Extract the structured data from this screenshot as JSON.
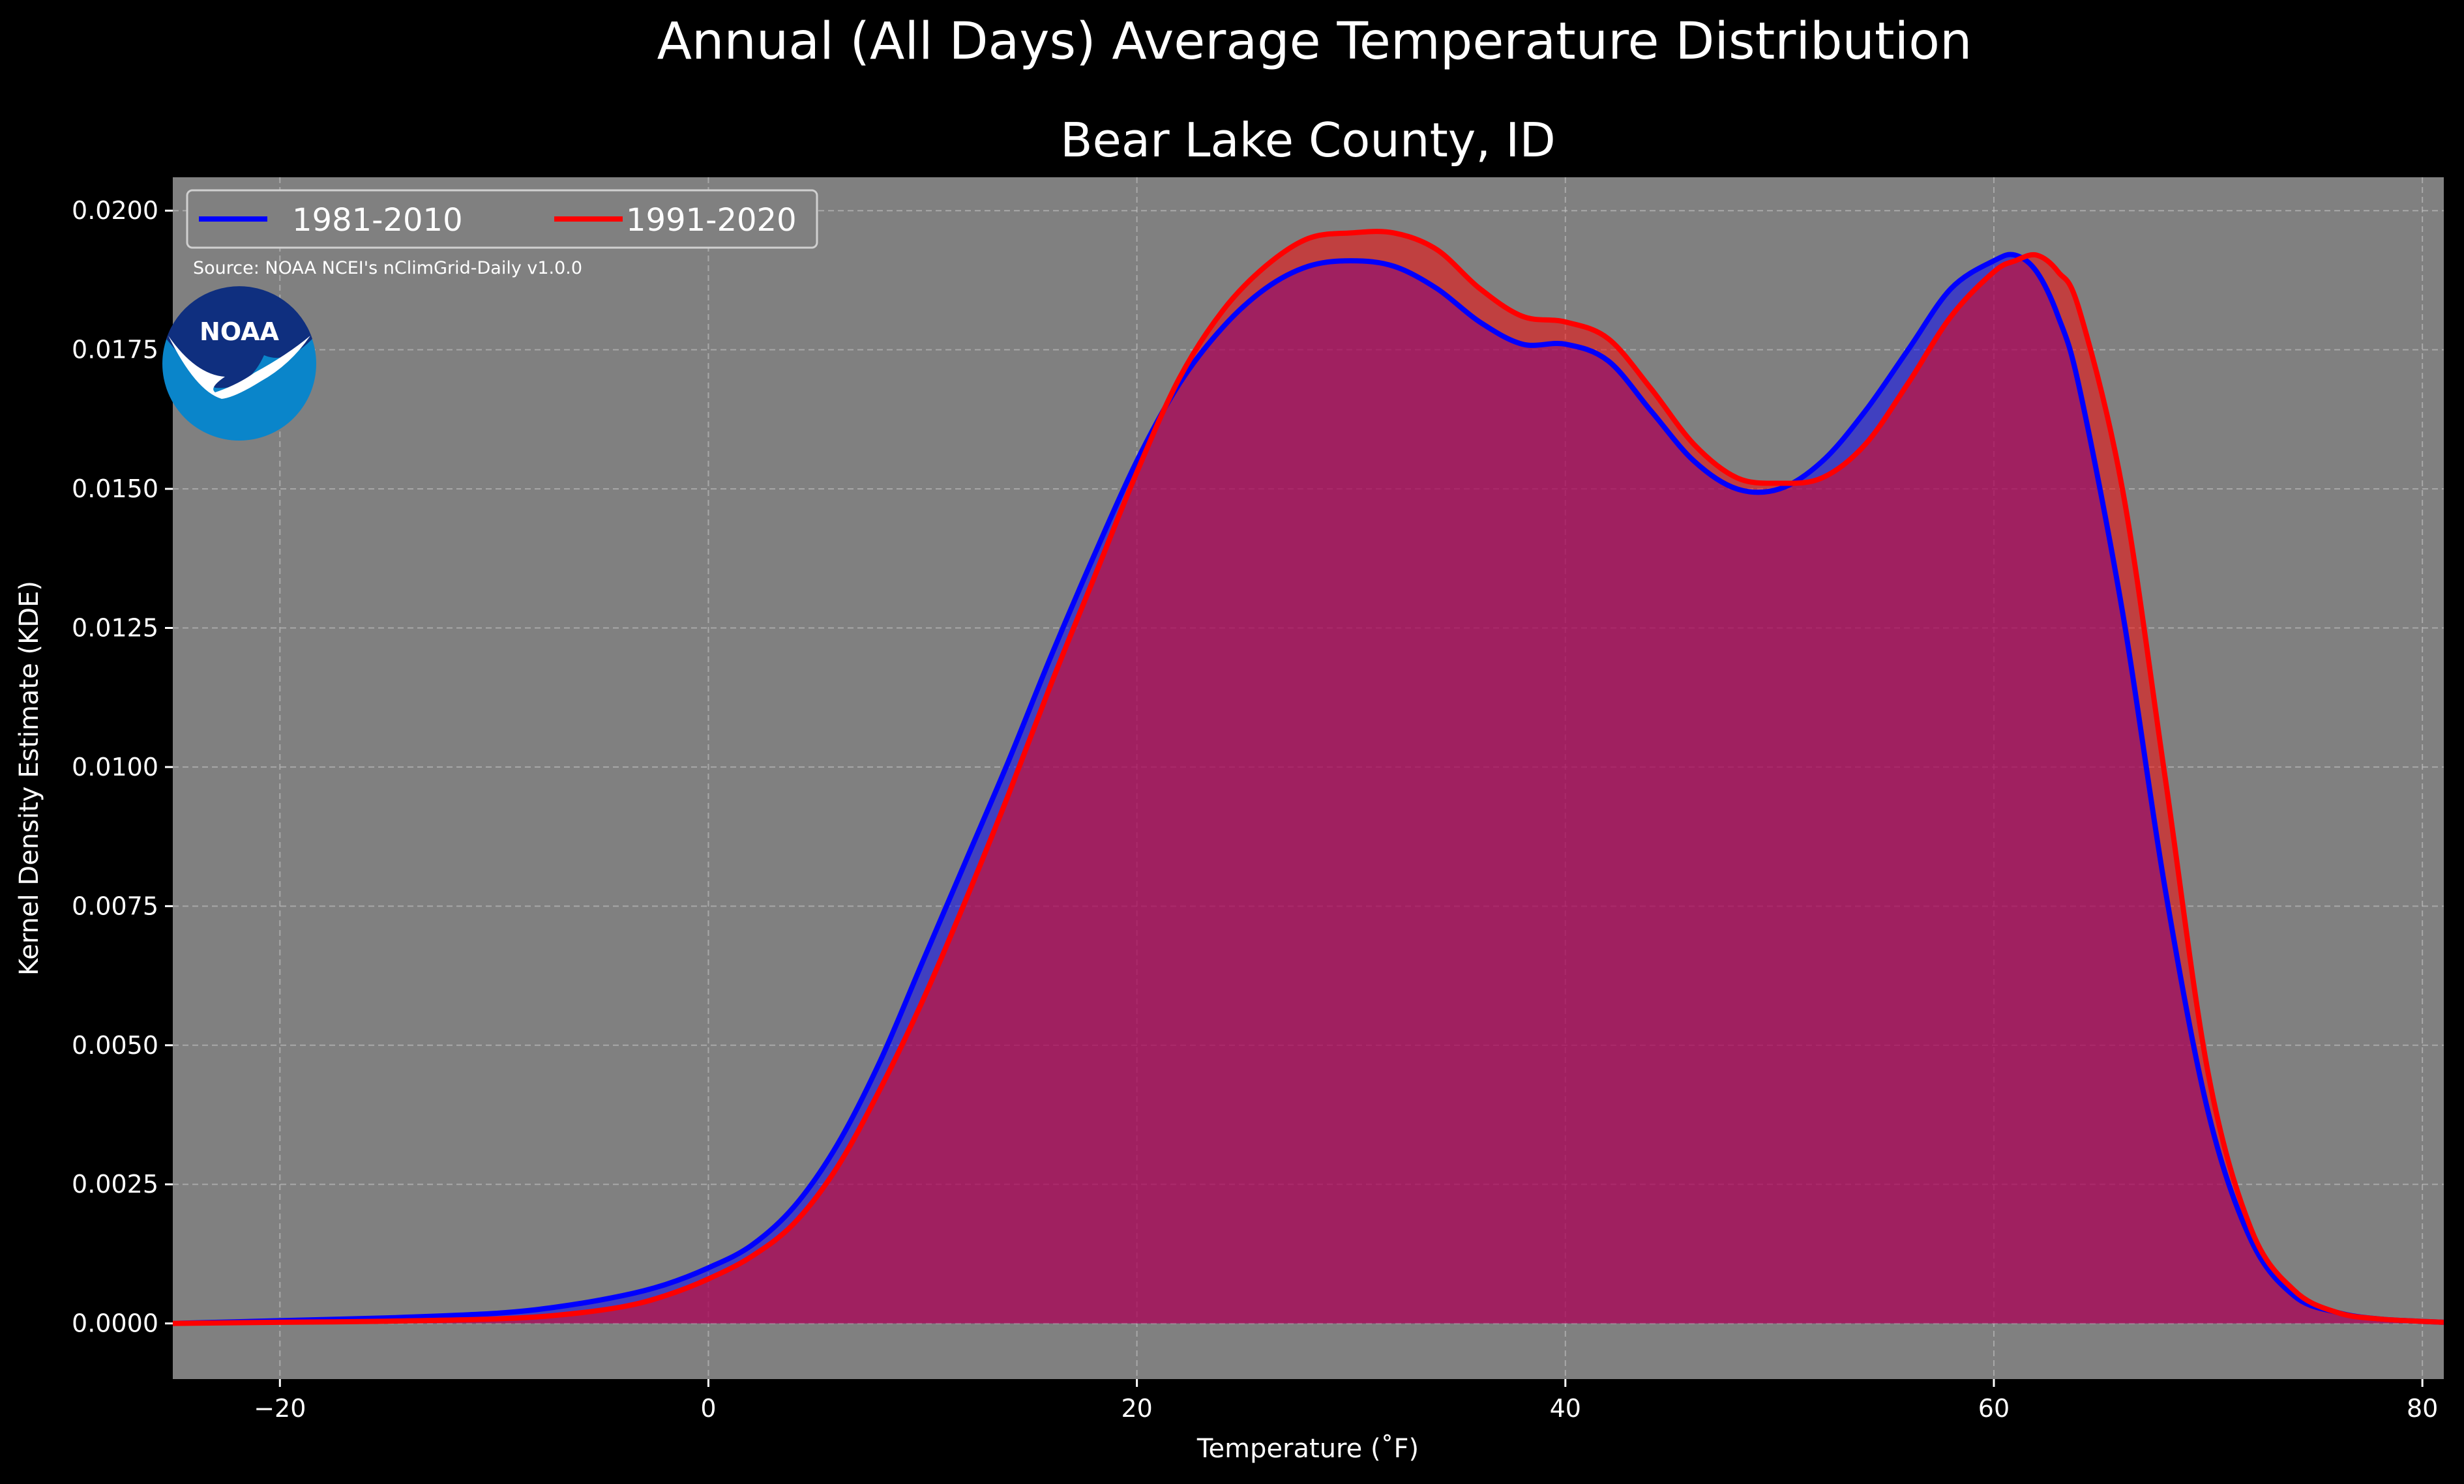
{
  "title": "Annual (All Days) Average Temperature Distribution",
  "subtitle": "Bear Lake County, ID",
  "source": "Source: NOAA NCEI's nClimGrid-Daily v1.0.0",
  "logo": {
    "icon": "noaa-logo",
    "text": "NOAA"
  },
  "colors": {
    "figure_bg": "#000000",
    "plot_bg": "#808080",
    "series_1981": "#0000ff",
    "series_1991": "#ff0000",
    "overlap_fill": "#9e1f5b"
  },
  "chart_data": {
    "type": "area",
    "xlabel": "Temperature ($^\\circ$F)",
    "xlabel_display": "Temperature (˚F)",
    "ylabel": "Kernel Density Estimate (KDE)",
    "xlim": [
      -25,
      81
    ],
    "ylim": [
      -0.001,
      0.0206
    ],
    "xticks": [
      -20,
      0,
      20,
      40,
      60,
      80
    ],
    "xtick_labels": [
      "−20",
      "0",
      "20",
      "40",
      "60",
      "80"
    ],
    "yticks": [
      0.0,
      0.0025,
      0.005,
      0.0075,
      0.01,
      0.0125,
      0.015,
      0.0175,
      0.02
    ],
    "ytick_labels": [
      "0.0000",
      "0.0025",
      "0.0050",
      "0.0075",
      "0.0100",
      "0.0125",
      "0.0150",
      "0.0175",
      "0.0200"
    ],
    "grid": true,
    "legend_position": "top-left",
    "series": [
      {
        "name": "1981-2010",
        "color": "#0000ff",
        "x": [
          -25,
          -20,
          -15,
          -10,
          -7,
          -4,
          -2,
          0,
          2,
          4,
          6,
          8,
          10,
          12,
          14,
          16,
          18,
          20,
          22,
          24,
          26,
          28,
          30,
          32,
          34,
          36,
          38,
          40,
          42,
          44,
          46,
          48,
          50,
          52,
          54,
          56,
          58,
          60,
          61,
          62,
          63,
          64,
          66,
          68,
          70,
          72,
          74,
          76,
          78,
          81
        ],
        "y": [
          0.0,
          5e-05,
          0.0001,
          0.00018,
          0.0003,
          0.0005,
          0.0007,
          0.001,
          0.0014,
          0.0021,
          0.0032,
          0.0047,
          0.0065,
          0.0083,
          0.0101,
          0.012,
          0.0138,
          0.0155,
          0.0169,
          0.0179,
          0.0186,
          0.019,
          0.0191,
          0.019,
          0.0186,
          0.018,
          0.0176,
          0.0176,
          0.0173,
          0.0164,
          0.0155,
          0.015,
          0.015,
          0.0155,
          0.0164,
          0.0175,
          0.0186,
          0.0191,
          0.0192,
          0.0189,
          0.0181,
          0.0168,
          0.0128,
          0.0078,
          0.0038,
          0.0015,
          0.0005,
          0.0002,
          8e-05,
          2e-05
        ]
      },
      {
        "name": "1991-2020",
        "color": "#ff0000",
        "x": [
          -25,
          -20,
          -15,
          -10,
          -7,
          -4,
          -2,
          0,
          2,
          4,
          6,
          8,
          10,
          12,
          14,
          16,
          18,
          20,
          22,
          24,
          26,
          28,
          30,
          32,
          34,
          36,
          38,
          40,
          42,
          44,
          46,
          48,
          50,
          52,
          54,
          56,
          58,
          60,
          61,
          62,
          63,
          64,
          66,
          68,
          70,
          72,
          74,
          76,
          78,
          81
        ],
        "y": [
          0.0,
          2e-05,
          4e-05,
          8e-05,
          0.00015,
          0.0003,
          0.0005,
          0.0008,
          0.0012,
          0.0018,
          0.0028,
          0.0042,
          0.0058,
          0.0076,
          0.0095,
          0.0115,
          0.0134,
          0.0153,
          0.017,
          0.0182,
          0.019,
          0.0195,
          0.0196,
          0.0196,
          0.0193,
          0.0186,
          0.0181,
          0.018,
          0.0177,
          0.0168,
          0.0158,
          0.0152,
          0.0151,
          0.0152,
          0.0158,
          0.0169,
          0.0181,
          0.0189,
          0.0191,
          0.0192,
          0.0189,
          0.0182,
          0.015,
          0.0098,
          0.0045,
          0.0017,
          0.0006,
          0.0002,
          8e-05,
          2e-05
        ]
      }
    ]
  }
}
